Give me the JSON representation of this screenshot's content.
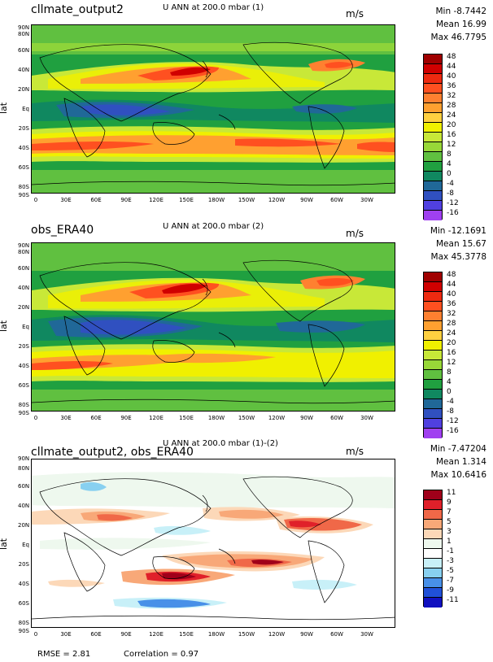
{
  "panels": [
    {
      "id": "p1",
      "left_title": "cllmate_output2",
      "center_title": "U ANN at 200.0 mbar (1)",
      "units": "m/s",
      "stats": {
        "min": "Min -8.7442",
        "mean": "Mean 16.99",
        "max": "Max 46.7795"
      },
      "colorbar": {
        "labels": [
          "48",
          "44",
          "40",
          "36",
          "32",
          "28",
          "24",
          "20",
          "16",
          "12",
          "8",
          "4",
          "0",
          "-4",
          "-8",
          "-12",
          "-16"
        ],
        "colors": [
          "#a00000",
          "#d00000",
          "#ee2a10",
          "#ff5020",
          "#ff8030",
          "#ffa030",
          "#ffd040",
          "#f0f000",
          "#c8e838",
          "#98d838",
          "#60c040",
          "#20a040",
          "#108860",
          "#206898",
          "#3050c0",
          "#5040e0",
          "#a040f0"
        ]
      }
    },
    {
      "id": "p2",
      "left_title": "obs_ERA40",
      "center_title": "U ANN at 200.0 mbar (2)",
      "units": "m/s",
      "stats": {
        "min": "Min -12.1691",
        "mean": "Mean 15.67",
        "max": "Max 45.3778"
      },
      "colorbar": {
        "labels": [
          "48",
          "44",
          "40",
          "36",
          "32",
          "28",
          "24",
          "20",
          "16",
          "12",
          "8",
          "4",
          "0",
          "-4",
          "-8",
          "-12",
          "-16"
        ],
        "colors": [
          "#a00000",
          "#d00000",
          "#ee2a10",
          "#ff5020",
          "#ff8030",
          "#ffa030",
          "#ffd040",
          "#f0f000",
          "#c8e838",
          "#98d838",
          "#60c040",
          "#20a040",
          "#108860",
          "#206898",
          "#3050c0",
          "#5040e0",
          "#a040f0"
        ]
      }
    },
    {
      "id": "p3",
      "left_title": "cllmate_output2, obs_ERA40",
      "center_title": "U ANN at 200.0 mbar (1)-(2)",
      "units": "m/s",
      "stats": {
        "min": "Min -7.47204",
        "mean": "Mean 1.314",
        "max": "Max 10.6416"
      },
      "colorbar": {
        "labels": [
          "11",
          "9",
          "7",
          "5",
          "3",
          "1",
          "-1",
          "-3",
          "-5",
          "-7",
          "-9",
          "-11"
        ],
        "colors": [
          "#a0001a",
          "#e0202a",
          "#f06848",
          "#f8a878",
          "#fcd8b8",
          "#eef8ee",
          "#ffffff",
          "#c8f0f8",
          "#88d0f0",
          "#4890e8",
          "#2050d8",
          "#1010c0"
        ]
      }
    }
  ],
  "axes": {
    "ylabel": "lat",
    "lat_ticks": [
      "90N",
      "80N",
      "60N",
      "40N",
      "20N",
      "Eq",
      "20S",
      "40S",
      "60S",
      "80S",
      "90S"
    ],
    "lon_ticks": [
      "0",
      "30E",
      "60E",
      "90E",
      "120E",
      "150E",
      "180W",
      "150W",
      "120W",
      "90W",
      "60W",
      "30W"
    ]
  },
  "footer": {
    "rmse": "RMSE = 2.81",
    "correlation": "Correlation = 0.97"
  }
}
